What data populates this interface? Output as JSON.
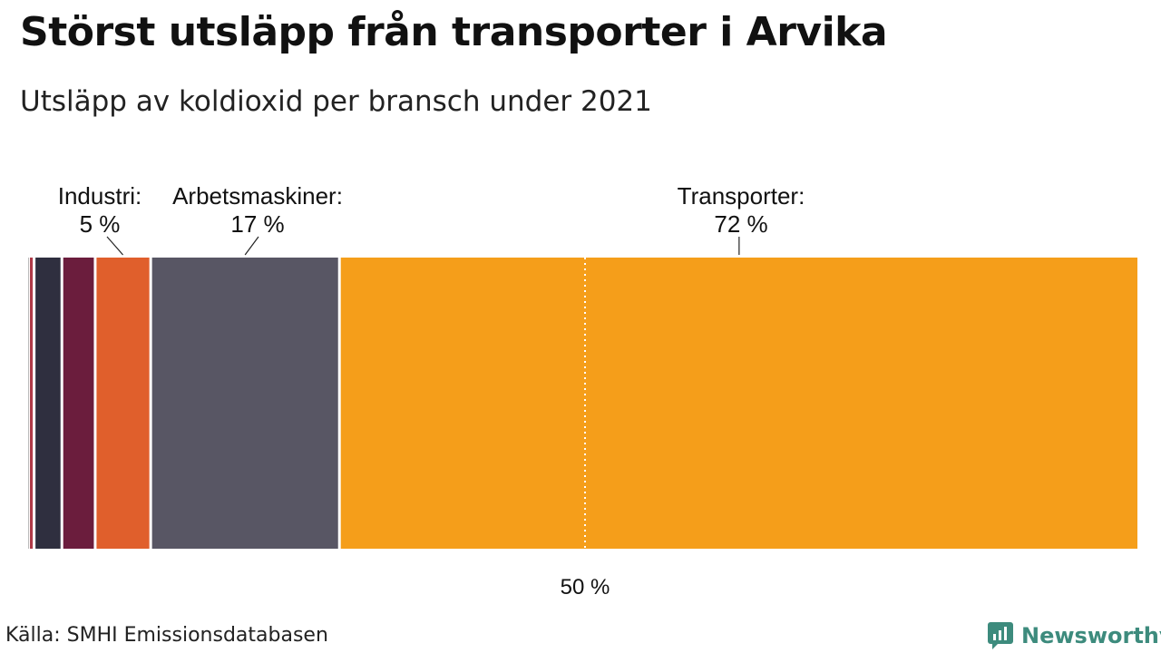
{
  "title": "Störst utsläpp från transporter i Arvika",
  "subtitle": "Utsläpp av koldioxid per bransch under 2021",
  "source": "Källa: SMHI Emissionsdatabasen",
  "brand": {
    "name": "Newsworthy",
    "color": "#3d8b7d"
  },
  "chart_data": {
    "type": "bar",
    "orientation": "horizontal-stacked-100",
    "xlim": [
      0,
      100
    ],
    "reference_line": {
      "value": 50,
      "label": "50 %",
      "style": "dotted",
      "color": "#ffffff"
    },
    "segments": [
      {
        "value": 0.5,
        "color": "#b03a48"
      },
      {
        "value": 2.5,
        "color": "#2f2f3f"
      },
      {
        "value": 3,
        "color": "#6b1d3d"
      },
      {
        "value": 5,
        "color": "#e05f2c",
        "label": "Industri:",
        "value_label": "5 %"
      },
      {
        "value": 17,
        "color": "#585664",
        "label": "Arbetsmaskiner:",
        "value_label": "17 %"
      },
      {
        "value": 72,
        "color": "#f59e1a",
        "label": "Transporter:",
        "value_label": "72 %"
      }
    ]
  }
}
